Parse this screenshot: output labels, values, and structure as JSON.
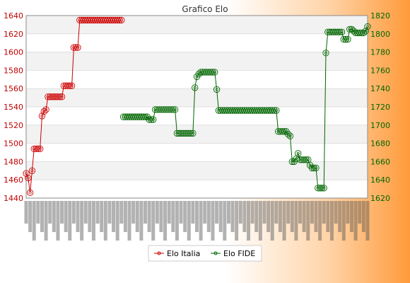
{
  "chart_data": {
    "type": "line",
    "title": "Grafico Elo",
    "y_left": {
      "min": 1440,
      "max": 1640,
      "ticks": [
        1440,
        1460,
        1480,
        1500,
        1520,
        1540,
        1560,
        1580,
        1600,
        1620,
        1640
      ],
      "color": "#cc0000"
    },
    "y_right": {
      "min": 1620,
      "max": 1820,
      "ticks": [
        1620,
        1640,
        1660,
        1680,
        1700,
        1720,
        1740,
        1760,
        1780,
        1800,
        1820
      ],
      "color": "#006600"
    },
    "grid": true,
    "legend_position": "bottom",
    "x_labels_rotated": true,
    "series": [
      {
        "name": "Elo Italia",
        "axis": "left",
        "color": "#cc0000",
        "values": [
          1467,
          1462,
          1446,
          1470,
          1494,
          1494,
          1494,
          1494,
          1530,
          1535,
          1537,
          1551,
          1551,
          1551,
          1551,
          1551,
          1551,
          1551,
          1551,
          1563,
          1563,
          1563,
          1563,
          1563,
          1605,
          1605,
          1605,
          1635,
          1635,
          1635,
          1635,
          1635,
          1635,
          1635,
          1635,
          1635,
          1635,
          1635,
          1635,
          1635,
          1635,
          1635,
          1635,
          1635,
          1635,
          1635,
          1635,
          1635,
          1635
        ]
      },
      {
        "name": "Elo FIDE",
        "axis": "right",
        "color": "#006600",
        "start_index": 49,
        "values": [
          1709,
          1709,
          1709,
          1709,
          1709,
          1709,
          1709,
          1709,
          1709,
          1709,
          1709,
          1709,
          1709,
          1706,
          1706,
          1706,
          1717,
          1717,
          1717,
          1717,
          1717,
          1717,
          1717,
          1717,
          1717,
          1717,
          1717,
          1691,
          1691,
          1691,
          1691,
          1691,
          1691,
          1691,
          1691,
          1691,
          1741,
          1753,
          1756,
          1758,
          1758,
          1758,
          1758,
          1758,
          1758,
          1758,
          1758,
          1739,
          1716,
          1716,
          1716,
          1716,
          1716,
          1716,
          1716,
          1716,
          1716,
          1716,
          1716,
          1716,
          1716,
          1716,
          1716,
          1716,
          1716,
          1716,
          1716,
          1716,
          1716,
          1716,
          1716,
          1716,
          1716,
          1716,
          1716,
          1716,
          1716,
          1716,
          1693,
          1693,
          1693,
          1693,
          1693,
          1690,
          1688,
          1660,
          1660,
          1663,
          1669,
          1662,
          1662,
          1662,
          1662,
          1662,
          1656,
          1653,
          1653,
          1653,
          1631,
          1631,
          1631,
          1631,
          1779,
          1802,
          1802,
          1802,
          1802,
          1802,
          1802,
          1802,
          1802,
          1794,
          1794,
          1794,
          1805,
          1805,
          1803,
          1801,
          1801,
          1801,
          1801,
          1801,
          1803,
          1808
        ]
      }
    ]
  }
}
